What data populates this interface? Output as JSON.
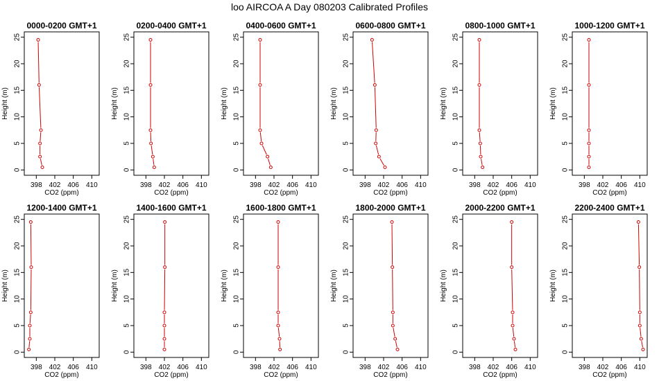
{
  "title": "loo AIRCOA A  Day 080203  Calibrated Profiles",
  "colors": {
    "profile": "#cc0000",
    "axis": "#000000"
  },
  "chart_data": [
    {
      "type": "line",
      "title": "0000-0200 GMT+1",
      "xlabel": "CO2 (ppm)",
      "ylabel": "Height (m)",
      "xlim": [
        396,
        411
      ],
      "ylim": [
        0,
        25
      ],
      "xticks": [
        398,
        402,
        406,
        410
      ],
      "yticks": [
        0,
        5,
        10,
        15,
        20,
        25
      ],
      "series": [
        {
          "x": [
            399.3,
            398.8,
            398.8,
            399.0,
            398.6,
            398.4
          ],
          "y": [
            0.5,
            2.5,
            5,
            7.5,
            16,
            24.5
          ]
        }
      ]
    },
    {
      "type": "line",
      "title": "0200-0400 GMT+1",
      "xlabel": "CO2 (ppm)",
      "ylabel": "Height (m)",
      "xlim": [
        396,
        411
      ],
      "ylim": [
        0,
        25
      ],
      "xticks": [
        398,
        402,
        406,
        410
      ],
      "yticks": [
        0,
        5,
        10,
        15,
        20,
        25
      ],
      "series": [
        {
          "x": [
            399.8,
            399.5,
            399.1,
            399.0,
            399.0,
            399.0
          ],
          "y": [
            0.5,
            2.5,
            5,
            7.5,
            16,
            24.5
          ]
        }
      ]
    },
    {
      "type": "line",
      "title": "0400-0600 GMT+1",
      "xlabel": "CO2 (ppm)",
      "ylabel": "Height (m)",
      "xlim": [
        396,
        411
      ],
      "ylim": [
        0,
        25
      ],
      "xticks": [
        398,
        402,
        406,
        410
      ],
      "yticks": [
        0,
        5,
        10,
        15,
        20,
        25
      ],
      "series": [
        {
          "x": [
            401.3,
            400.6,
            399.3,
            399.0,
            399.0,
            399.0
          ],
          "y": [
            0.5,
            2.5,
            5,
            7.5,
            16,
            24.5
          ]
        }
      ]
    },
    {
      "type": "line",
      "title": "0600-0800 GMT+1",
      "xlabel": "CO2 (ppm)",
      "ylabel": "Height (m)",
      "xlim": [
        396,
        411
      ],
      "ylim": [
        0,
        25
      ],
      "xticks": [
        398,
        402,
        406,
        410
      ],
      "yticks": [
        0,
        5,
        10,
        15,
        20,
        25
      ],
      "series": [
        {
          "x": [
            402.3,
            401.0,
            400.3,
            400.4,
            400.1,
            399.5
          ],
          "y": [
            0.5,
            2.5,
            5,
            7.5,
            16,
            24.5
          ]
        }
      ]
    },
    {
      "type": "line",
      "title": "0800-1000 GMT+1",
      "xlabel": "CO2 (ppm)",
      "ylabel": "Height (m)",
      "xlim": [
        396,
        411
      ],
      "ylim": [
        0,
        25
      ],
      "xticks": [
        398,
        402,
        406,
        410
      ],
      "yticks": [
        0,
        5,
        10,
        15,
        20,
        25
      ],
      "series": [
        {
          "x": [
            399.7,
            399.3,
            399.2,
            399.0,
            399.0,
            399.0
          ],
          "y": [
            0.5,
            2.5,
            5,
            7.5,
            16,
            24.5
          ]
        }
      ]
    },
    {
      "type": "line",
      "title": "1000-1200 GMT+1",
      "xlabel": "CO2 (ppm)",
      "ylabel": "Height (m)",
      "xlim": [
        396,
        411
      ],
      "ylim": [
        0,
        25
      ],
      "xticks": [
        398,
        402,
        406,
        410
      ],
      "yticks": [
        0,
        5,
        10,
        15,
        20,
        25
      ],
      "series": [
        {
          "x": [
            399.0,
            399.0,
            399.0,
            399.0,
            399.0,
            399.0
          ],
          "y": [
            0.5,
            2.5,
            5,
            7.5,
            16,
            24.5
          ]
        }
      ]
    },
    {
      "type": "line",
      "title": "1200-1400 GMT+1",
      "xlabel": "CO2 (ppm)",
      "ylabel": "Height (m)",
      "xlim": [
        396,
        411
      ],
      "ylim": [
        0,
        25
      ],
      "xticks": [
        398,
        402,
        406,
        410
      ],
      "yticks": [
        0,
        5,
        10,
        15,
        20,
        25
      ],
      "series": [
        {
          "x": [
            396.4,
            396.6,
            396.6,
            396.8,
            396.9,
            396.8
          ],
          "y": [
            0.5,
            2.5,
            5,
            7.5,
            16,
            24.5
          ]
        }
      ]
    },
    {
      "type": "line",
      "title": "1400-1600 GMT+1",
      "xlabel": "CO2 (ppm)",
      "ylabel": "Height (m)",
      "xlim": [
        396,
        411
      ],
      "ylim": [
        0,
        25
      ],
      "xticks": [
        398,
        402,
        406,
        410
      ],
      "yticks": [
        0,
        5,
        10,
        15,
        20,
        25
      ],
      "series": [
        {
          "x": [
            402.0,
            402.0,
            402.0,
            402.0,
            402.1,
            402.1
          ],
          "y": [
            0.5,
            2.5,
            5,
            7.5,
            16,
            24.5
          ]
        }
      ]
    },
    {
      "type": "line",
      "title": "1600-1800 GMT+1",
      "xlabel": "CO2 (ppm)",
      "ylabel": "Height (m)",
      "xlim": [
        396,
        411
      ],
      "ylim": [
        0,
        25
      ],
      "xticks": [
        398,
        402,
        406,
        410
      ],
      "yticks": [
        0,
        5,
        10,
        15,
        20,
        25
      ],
      "series": [
        {
          "x": [
            403.3,
            403.2,
            402.9,
            402.9,
            402.9,
            402.9
          ],
          "y": [
            0.5,
            2.5,
            5,
            7.5,
            16,
            24.5
          ]
        }
      ]
    },
    {
      "type": "line",
      "title": "1800-2000 GMT+1",
      "xlabel": "CO2 (ppm)",
      "ylabel": "Height (m)",
      "xlim": [
        396,
        411
      ],
      "ylim": [
        0,
        25
      ],
      "xticks": [
        398,
        402,
        406,
        410
      ],
      "yticks": [
        0,
        5,
        10,
        15,
        20,
        25
      ],
      "series": [
        {
          "x": [
            405.0,
            404.5,
            404.0,
            404.0,
            403.9,
            403.8
          ],
          "y": [
            0.5,
            2.5,
            5,
            7.5,
            16,
            24.5
          ]
        }
      ]
    },
    {
      "type": "line",
      "title": "2000-2200 GMT+1",
      "xlabel": "CO2 (ppm)",
      "ylabel": "Height (m)",
      "xlim": [
        396,
        411
      ],
      "ylim": [
        0,
        25
      ],
      "xticks": [
        398,
        402,
        406,
        410
      ],
      "yticks": [
        0,
        5,
        10,
        15,
        20,
        25
      ],
      "series": [
        {
          "x": [
            406.8,
            406.5,
            406.2,
            406.2,
            406.0,
            406.0
          ],
          "y": [
            0.5,
            2.5,
            5,
            7.5,
            16,
            24.5
          ]
        }
      ]
    },
    {
      "type": "line",
      "title": "2200-2400 GMT+1",
      "xlabel": "CO2 (ppm)",
      "ylabel": "Height (m)",
      "xlim": [
        396,
        411
      ],
      "ylim": [
        0,
        25
      ],
      "xticks": [
        398,
        402,
        406,
        410
      ],
      "yticks": [
        0,
        5,
        10,
        15,
        20,
        25
      ],
      "series": [
        {
          "x": [
            410.7,
            410.3,
            410.0,
            410.0,
            409.9,
            409.7
          ],
          "y": [
            0.5,
            2.5,
            5,
            7.5,
            16,
            24.5
          ]
        }
      ]
    }
  ]
}
